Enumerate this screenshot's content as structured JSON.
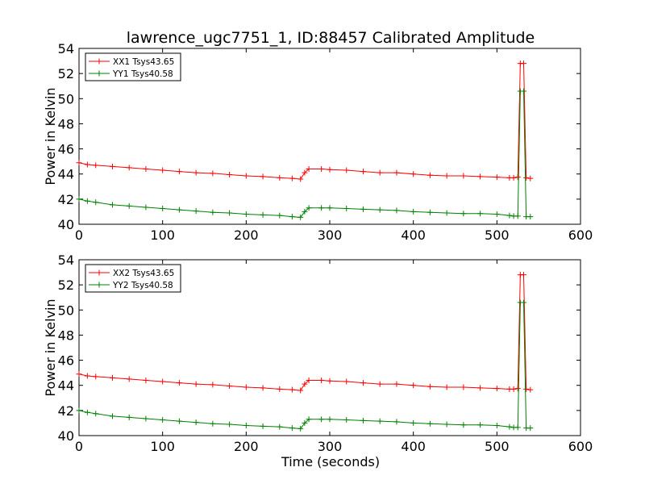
{
  "figure": {
    "title": "lawrence_ugc7751_1, ID:88457 Calibrated Amplitude",
    "xlabel": "Time (seconds)"
  },
  "colors": {
    "xx": "#ff0000",
    "yy": "#008000"
  },
  "chart_data": [
    {
      "type": "line",
      "ylabel": "Power in Kelvin",
      "xlim": [
        0,
        600
      ],
      "ylim": [
        40,
        54
      ],
      "xticks": [
        0,
        100,
        200,
        300,
        400,
        500,
        600
      ],
      "yticks": [
        40,
        42,
        44,
        46,
        48,
        50,
        52,
        54
      ],
      "legend": "upper-left",
      "series": [
        {
          "name": "XX1 Tsys43.65",
          "color": "#ff0000",
          "x": [
            0,
            10,
            20,
            40,
            60,
            80,
            100,
            120,
            140,
            160,
            180,
            200,
            220,
            240,
            255,
            265,
            270,
            275,
            290,
            300,
            320,
            340,
            360,
            380,
            400,
            420,
            440,
            460,
            480,
            500,
            515,
            520,
            525,
            528,
            532,
            535,
            540
          ],
          "y": [
            44.9,
            44.75,
            44.7,
            44.6,
            44.5,
            44.4,
            44.3,
            44.2,
            44.1,
            44.05,
            43.95,
            43.85,
            43.8,
            43.7,
            43.65,
            43.6,
            44.1,
            44.4,
            44.4,
            44.35,
            44.3,
            44.2,
            44.1,
            44.1,
            44.0,
            43.9,
            43.85,
            43.85,
            43.8,
            43.75,
            43.7,
            43.7,
            43.75,
            52.8,
            52.8,
            43.7,
            43.65
          ]
        },
        {
          "name": "YY1 Tsys40.58",
          "color": "#008000",
          "x": [
            0,
            10,
            20,
            40,
            60,
            80,
            100,
            120,
            140,
            160,
            180,
            200,
            220,
            240,
            255,
            265,
            270,
            275,
            290,
            300,
            320,
            340,
            360,
            380,
            400,
            420,
            440,
            460,
            480,
            500,
            515,
            520,
            525,
            528,
            532,
            535,
            540
          ],
          "y": [
            42.0,
            41.85,
            41.75,
            41.55,
            41.45,
            41.35,
            41.25,
            41.15,
            41.05,
            40.95,
            40.9,
            40.8,
            40.75,
            40.7,
            40.6,
            40.55,
            41.0,
            41.3,
            41.3,
            41.3,
            41.25,
            41.2,
            41.15,
            41.1,
            41.0,
            40.95,
            40.9,
            40.85,
            40.85,
            40.8,
            40.7,
            40.65,
            40.65,
            50.6,
            50.6,
            40.6,
            40.6
          ]
        }
      ]
    },
    {
      "type": "line",
      "ylabel": "Power in Kelvin",
      "xlim": [
        0,
        600
      ],
      "ylim": [
        40,
        54
      ],
      "xticks": [
        0,
        100,
        200,
        300,
        400,
        500,
        600
      ],
      "yticks": [
        40,
        42,
        44,
        46,
        48,
        50,
        52,
        54
      ],
      "legend": "upper-left",
      "series": [
        {
          "name": "XX2 Tsys43.65",
          "color": "#ff0000",
          "x": [
            0,
            10,
            20,
            40,
            60,
            80,
            100,
            120,
            140,
            160,
            180,
            200,
            220,
            240,
            255,
            265,
            270,
            275,
            290,
            300,
            320,
            340,
            360,
            380,
            400,
            420,
            440,
            460,
            480,
            500,
            515,
            520,
            525,
            528,
            532,
            535,
            540
          ],
          "y": [
            44.9,
            44.75,
            44.7,
            44.6,
            44.5,
            44.4,
            44.3,
            44.2,
            44.1,
            44.05,
            43.95,
            43.85,
            43.8,
            43.7,
            43.65,
            43.6,
            44.1,
            44.4,
            44.4,
            44.35,
            44.3,
            44.2,
            44.1,
            44.1,
            44.0,
            43.9,
            43.85,
            43.85,
            43.8,
            43.75,
            43.7,
            43.7,
            43.75,
            52.8,
            52.8,
            43.7,
            43.65
          ]
        },
        {
          "name": "YY2 Tsys40.58",
          "color": "#008000",
          "x": [
            0,
            10,
            20,
            40,
            60,
            80,
            100,
            120,
            140,
            160,
            180,
            200,
            220,
            240,
            255,
            265,
            270,
            275,
            290,
            300,
            320,
            340,
            360,
            380,
            400,
            420,
            440,
            460,
            480,
            500,
            515,
            520,
            525,
            528,
            532,
            535,
            540
          ],
          "y": [
            42.0,
            41.85,
            41.75,
            41.55,
            41.45,
            41.35,
            41.25,
            41.15,
            41.05,
            40.95,
            40.9,
            40.8,
            40.75,
            40.7,
            40.6,
            40.55,
            41.0,
            41.3,
            41.3,
            41.3,
            41.25,
            41.2,
            41.15,
            41.1,
            41.0,
            40.95,
            40.9,
            40.85,
            40.85,
            40.8,
            40.7,
            40.65,
            40.65,
            50.6,
            50.6,
            40.6,
            40.6
          ]
        }
      ]
    }
  ]
}
